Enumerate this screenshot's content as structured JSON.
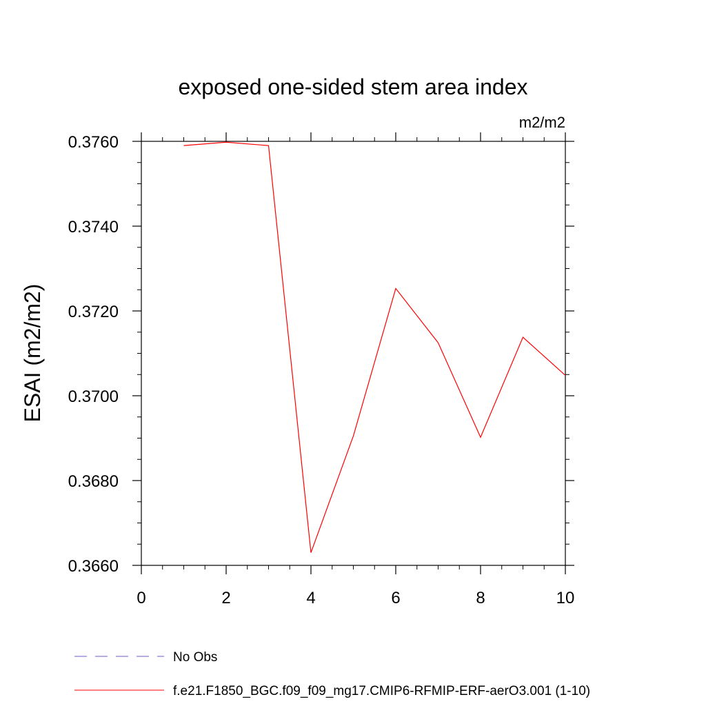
{
  "chart_data": {
    "type": "line",
    "title": "exposed one-sided stem area index",
    "units": "m2/m2",
    "xlabel": "",
    "ylabel": "ESAI  (m2/m2)",
    "xlim": [
      0,
      10
    ],
    "ylim": [
      0.366,
      0.376
    ],
    "xticks": [
      "0",
      "2",
      "4",
      "6",
      "8",
      "10"
    ],
    "yticks": [
      "0.3660",
      "0.3680",
      "0.3700",
      "0.3720",
      "0.3740",
      "0.3760"
    ],
    "grid": false,
    "legend_position": "bottom-left",
    "series": [
      {
        "name": "No Obs",
        "color": "#6a5acd",
        "style": "dashed",
        "x": [],
        "values": []
      },
      {
        "name": "f.e21.F1850_BGC.f09_f09_mg17.CMIP6-RFMIP-ERF-aerO3.001 (1-10)",
        "color": "#ff0000",
        "style": "solid",
        "x": [
          1,
          2,
          3,
          4,
          5,
          6,
          7,
          8,
          9,
          10
        ],
        "values": [
          0.3759,
          0.37598,
          0.3759,
          0.3663,
          0.36905,
          0.37253,
          0.37125,
          0.36902,
          0.37138,
          0.37048
        ]
      }
    ]
  }
}
